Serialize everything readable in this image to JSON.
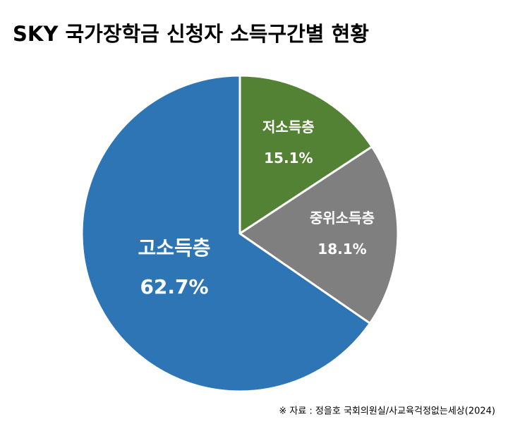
{
  "chart_data": {
    "type": "pie",
    "title": "SKY 국가장학금 신청자 소득구간별 현황",
    "categories": [
      "저소득층",
      "중위소득층",
      "고소득층"
    ],
    "values": [
      15.1,
      18.1,
      62.7
    ],
    "value_labels": [
      "15.1%",
      "18.1%",
      "62.7%"
    ],
    "colors": [
      "#548235",
      "#7f7f7f",
      "#2e75b6"
    ],
    "source": "※ 자료 : 정을호 국회의원실/사교육걱정없는세상(2024)"
  }
}
